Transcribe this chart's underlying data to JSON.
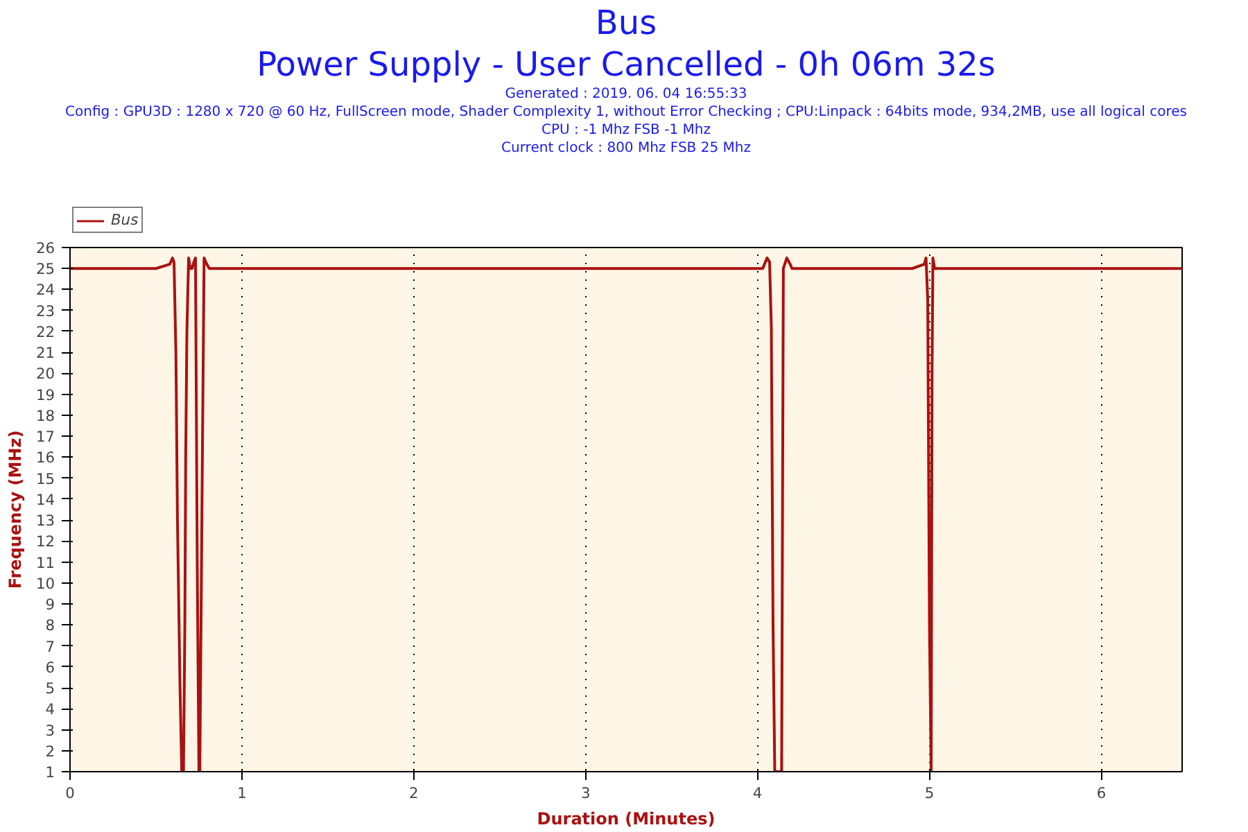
{
  "chart_data": {
    "type": "line",
    "title": "Bus",
    "subtitle": "Power Supply - User Cancelled - 0h 06m 32s",
    "annotations": [
      "Generated : 2019. 06. 04 16:55:33",
      "Config : GPU3D : 1280 x 720 @ 60 Hz, FullScreen mode, Shader Complexity 1, without Error Checking ; CPU:Linpack : 64bits mode, 934,2MB, use all logical cores",
      "CPU : -1 Mhz FSB -1 Mhz",
      "Current clock : 800 Mhz FSB 25 Mhz"
    ],
    "xlabel": "Duration (Minutes)",
    "ylabel": "Frequency (MHz)",
    "xlim": [
      0,
      6.47
    ],
    "ylim": [
      1,
      26
    ],
    "xticks": [
      0,
      1,
      2,
      3,
      4,
      5,
      6
    ],
    "yticks": [
      1,
      2,
      3,
      4,
      5,
      6,
      7,
      8,
      9,
      10,
      11,
      12,
      13,
      14,
      15,
      16,
      17,
      18,
      19,
      20,
      21,
      22,
      23,
      24,
      25,
      26
    ],
    "grid": "x",
    "legend": "top left",
    "marker": "none",
    "line_style": "solid",
    "series": [
      {
        "name": "Bus",
        "color": "#aa1111",
        "x": [
          0,
          0.5,
          0.58,
          0.596,
          0.605,
          0.616,
          0.625,
          0.64,
          0.65,
          0.66,
          0.668,
          0.673,
          0.68,
          0.69,
          0.7,
          0.71,
          0.72,
          0.73,
          0.74,
          0.75,
          0.755,
          0.76,
          0.77,
          0.78,
          0.79,
          0.81,
          1.5,
          2.5,
          3.5,
          4.03,
          4.055,
          4.07,
          4.08,
          4.09,
          4.1,
          4.14,
          4.15,
          4.17,
          4.19,
          4.2,
          4.9,
          4.97,
          4.98,
          4.99,
          5.0,
          5.01,
          5.015,
          5.02,
          5.03,
          5.5,
          6.47
        ],
        "values": [
          25,
          25,
          25.2,
          25.5,
          25.3,
          21,
          13,
          5,
          1,
          1,
          8,
          16,
          22,
          25.5,
          25,
          25,
          25.3,
          25.5,
          11,
          1,
          1,
          6,
          16,
          25.5,
          25.3,
          25,
          25,
          25,
          25,
          25,
          25.5,
          25.3,
          22.2,
          8,
          1,
          1,
          25,
          25.5,
          25.2,
          25,
          25,
          25.2,
          25.5,
          23.5,
          8,
          1,
          20,
          25.5,
          25,
          25,
          25
        ]
      }
    ]
  }
}
